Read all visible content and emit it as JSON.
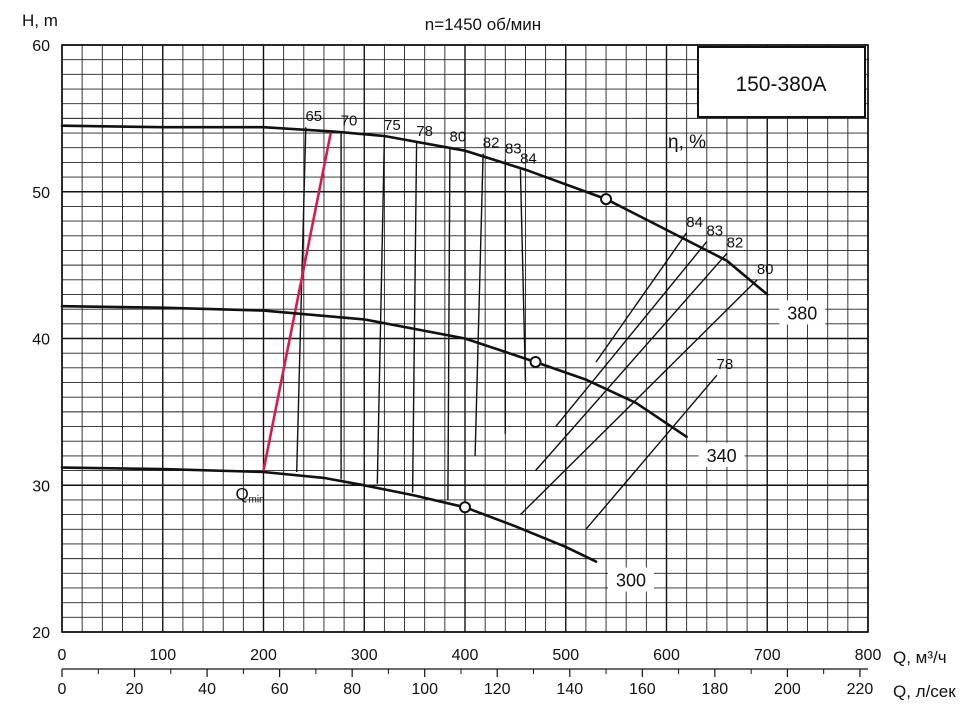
{
  "chart_data": {
    "type": "line",
    "title": "n=1450 об/мин",
    "model": "150-380A",
    "ylabel": "H, m",
    "xlabel": "Q, м³/ч",
    "xlabel2": "Q, л/сек",
    "efficiency_label": "η, %",
    "xlim": [
      0,
      800
    ],
    "ylim": [
      20,
      60
    ],
    "x_ticks": [
      "0",
      "100",
      "200",
      "300",
      "400",
      "500",
      "600",
      "700",
      "800"
    ],
    "x2_ticks": [
      "0",
      "20",
      "40",
      "60",
      "80",
      "100",
      "120",
      "140",
      "160",
      "180",
      "200",
      "220"
    ],
    "y_ticks": [
      "20",
      "30",
      "40",
      "50",
      "60"
    ],
    "grid": true,
    "series": [
      {
        "name": "380",
        "points": [
          [
            0,
            54.5
          ],
          [
            100,
            54.4
          ],
          [
            200,
            54.4
          ],
          [
            270,
            54.1
          ],
          [
            320,
            53.8
          ],
          [
            400,
            52.8
          ],
          [
            460,
            51.5
          ],
          [
            540,
            49.5
          ],
          [
            600,
            47.4
          ],
          [
            660,
            45.3
          ],
          [
            700,
            43.0
          ]
        ]
      },
      {
        "name": "340",
        "points": [
          [
            0,
            42.2
          ],
          [
            100,
            42.1
          ],
          [
            200,
            41.9
          ],
          [
            300,
            41.3
          ],
          [
            400,
            40.0
          ],
          [
            470,
            38.4
          ],
          [
            520,
            37.2
          ],
          [
            570,
            35.6
          ],
          [
            620,
            33.3
          ]
        ]
      },
      {
        "name": "300",
        "points": [
          [
            0,
            31.2
          ],
          [
            100,
            31.1
          ],
          [
            200,
            30.9
          ],
          [
            260,
            30.5
          ],
          [
            300,
            30.0
          ],
          [
            350,
            29.3
          ],
          [
            400,
            28.5
          ],
          [
            450,
            27.2
          ],
          [
            500,
            25.8
          ],
          [
            530,
            24.8
          ]
        ]
      }
    ],
    "operating_points": [
      [
        540,
        49.5
      ],
      [
        470,
        38.4
      ],
      [
        400,
        28.5
      ]
    ],
    "efficiency_lines": [
      {
        "label": "65",
        "points": [
          [
            233,
            30.9
          ],
          [
            242,
            54.4
          ]
        ]
      },
      {
        "label": "70",
        "points": [
          [
            277,
            30.4
          ],
          [
            277,
            54.1
          ]
        ]
      },
      {
        "label": "75",
        "points": [
          [
            313,
            30.1
          ],
          [
            320,
            53.8
          ]
        ]
      },
      {
        "label": "78",
        "points": [
          [
            348,
            29.5
          ],
          [
            352,
            53.4
          ]
        ]
      },
      {
        "label": "80",
        "points": [
          [
            383,
            29.0
          ],
          [
            385,
            53.0
          ]
        ]
      },
      {
        "label": "82",
        "points": [
          [
            410,
            32.0
          ],
          [
            418,
            52.6
          ]
        ]
      },
      {
        "label": "83",
        "points": [
          [
            440,
            33.5
          ],
          [
            440,
            52.2
          ]
        ]
      },
      {
        "label": "84",
        "points": [
          [
            460,
            37.0
          ],
          [
            455,
            51.5
          ]
        ]
      },
      {
        "label": "84",
        "points": [
          [
            530,
            38.4
          ],
          [
            620,
            47.2
          ]
        ]
      },
      {
        "label": "83",
        "points": [
          [
            490,
            34.0
          ],
          [
            640,
            46.6
          ]
        ]
      },
      {
        "label": "82",
        "points": [
          [
            470,
            31.0
          ],
          [
            660,
            45.8
          ]
        ]
      },
      {
        "label": "80",
        "points": [
          [
            455,
            28.0
          ],
          [
            690,
            44.0
          ]
        ]
      },
      {
        "label": "78",
        "points": [
          [
            520,
            27.0
          ],
          [
            650,
            37.5
          ]
        ]
      }
    ],
    "q_min": {
      "label": "Q",
      "label_sub": "min",
      "points": [
        [
          200,
          31.0
        ],
        [
          267,
          54.1
        ]
      ]
    }
  }
}
